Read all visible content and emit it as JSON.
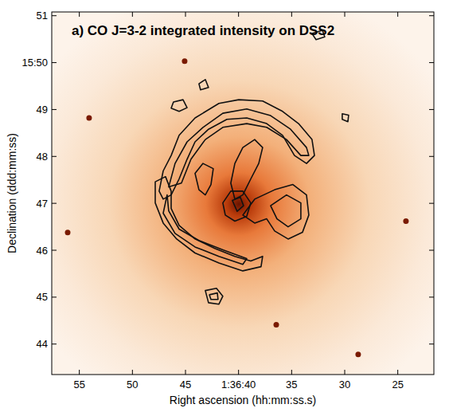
{
  "chart_data": {
    "type": "contour",
    "title": "a) CO J=3-2 integrated intensity on DSS2",
    "x_label": "Right ascension (hh:mm:ss.s)",
    "y_label": "Declination (ddd:mm:ss)",
    "color": "#111111",
    "xlim": [
      57.6,
      21.6
    ],
    "ylim": [
      43.35,
      51.08
    ],
    "xticks": [
      55,
      50,
      45,
      {
        "value": 40,
        "label": "1:36:40"
      },
      35,
      30,
      25
    ],
    "yticks": [
      51,
      {
        "value": 50,
        "label": "15:50"
      },
      49,
      48,
      47,
      46,
      45,
      44
    ],
    "contours": [
      {
        "ra": [
          47.48,
          47.1,
          46.35,
          45.6,
          44.1,
          41.85,
          39.98,
          37.73,
          35.85,
          34.35,
          33.08,
          32.85,
          33.6,
          34.73,
          35.85,
          37.35,
          39.23,
          41.1,
          42.83,
          44.1,
          44.85,
          45.6,
          46.35,
          47.1
        ],
        "dec": [
          47.26,
          47.69,
          48.02,
          48.45,
          48.82,
          49.13,
          49.21,
          49.18,
          48.96,
          48.7,
          48.36,
          48.02,
          47.85,
          48.02,
          48.45,
          48.7,
          48.82,
          48.79,
          48.58,
          48.31,
          47.94,
          47.52,
          47.18,
          47.09
        ]
      },
      {
        "ra": [
          46.58,
          45.98,
          44.85,
          43.35,
          41.48,
          39.23,
          36.98,
          35.1,
          33.6,
          33.38,
          34.13,
          35.48,
          37.35,
          39.23,
          41.48,
          43.13,
          44.48,
          45.38
        ],
        "dec": [
          47.35,
          47.85,
          48.31,
          48.62,
          48.92,
          49.01,
          48.87,
          48.58,
          48.19,
          48.02,
          48.02,
          48.36,
          48.62,
          48.7,
          48.62,
          48.36,
          47.94,
          47.43
        ]
      },
      {
        "ra": [
          47.85,
          46.88,
          46.35,
          46.35,
          45.6,
          44.1,
          42.23,
          40.35,
          38.85,
          37.73,
          37.88,
          39.6,
          41.85,
          44.1,
          45.83,
          47.1,
          47.85
        ],
        "dec": [
          47.46,
          47.57,
          47.26,
          46.89,
          46.53,
          46.24,
          46.04,
          45.87,
          45.77,
          45.87,
          45.65,
          45.56,
          45.73,
          45.94,
          46.24,
          46.58,
          47.01
        ]
      },
      {
        "ra": [
          46.73,
          46.58,
          45.6,
          43.73,
          41.48,
          39.23,
          39.6,
          41.85,
          44.1,
          45.98,
          47.1
        ],
        "dec": [
          47.18,
          46.84,
          46.45,
          46.21,
          46.01,
          45.82,
          45.7,
          45.87,
          46.07,
          46.36,
          46.79
        ]
      },
      {
        "ra": [
          39.6,
          38.48,
          36.6,
          34.88,
          33.6,
          33.38,
          33.98,
          35.33,
          36.6,
          37.35,
          38.48
        ],
        "dec": [
          46.75,
          47.09,
          47.29,
          47.4,
          47.18,
          46.75,
          46.38,
          46.24,
          46.41,
          46.67,
          46.58
        ]
      },
      {
        "ra": [
          36.98,
          35.48,
          34.13,
          34.13,
          35.33,
          36.38
        ],
        "dec": [
          46.95,
          47.18,
          47.01,
          46.67,
          46.5,
          46.67
        ]
      },
      {
        "ra": [
          40.73,
          40.35,
          39.6,
          38.48,
          37.73,
          38.1,
          38.85,
          39.6,
          40.35
        ],
        "dec": [
          47.43,
          47.85,
          48.19,
          48.36,
          48.19,
          47.85,
          47.52,
          47.18,
          47.09
        ]
      },
      {
        "ra": [
          41.48,
          40.73,
          39.6,
          38.85,
          39.23,
          40.35,
          41.25
        ],
        "dec": [
          47.01,
          47.26,
          47.26,
          47.01,
          46.72,
          46.62,
          46.75
        ]
      },
      {
        "ra": [
          40.58,
          39.83,
          39.53,
          40.13
        ],
        "dec": [
          47.06,
          47.13,
          46.95,
          46.83
        ]
      },
      {
        "ra": [
          44.1,
          43.35,
          42.38,
          42.6,
          43.13,
          43.73
        ],
        "dec": [
          47.64,
          47.85,
          47.74,
          47.4,
          47.18,
          47.29
        ]
      },
      {
        "ra": [
          43.13,
          42.08,
          41.48,
          41.85,
          42.83
        ],
        "dec": [
          45.14,
          45.19,
          45.02,
          44.85,
          44.88
        ]
      },
      {
        "ra": [
          42.75,
          42.0,
          41.93,
          42.6
        ],
        "dec": [
          45.05,
          45.09,
          44.95,
          44.95
        ]
      },
      {
        "ra": [
          46.13,
          45.23,
          44.85,
          45.6,
          46.35
        ],
        "dec": [
          49.16,
          49.21,
          49.04,
          48.96,
          49.03
        ]
      },
      {
        "ra": [
          43.73,
          43.13,
          42.83,
          43.58
        ],
        "dec": [
          49.55,
          49.64,
          49.47,
          49.42
        ]
      },
      {
        "ra": [
          30.23,
          29.63,
          29.7,
          30.23
        ],
        "dec": [
          48.91,
          48.88,
          48.74,
          48.79
        ]
      },
      {
        "ra": [
          33.08,
          32.1,
          31.88,
          32.7
        ],
        "dec": [
          50.62,
          50.69,
          50.55,
          50.49
        ]
      }
    ],
    "stars": {
      "ra": [
        56.1,
        54.08,
        28.73,
        24.23,
        36.45,
        45.08
      ],
      "dec": [
        46.38,
        48.82,
        43.78,
        46.62,
        44.41,
        50.03
      ]
    }
  }
}
